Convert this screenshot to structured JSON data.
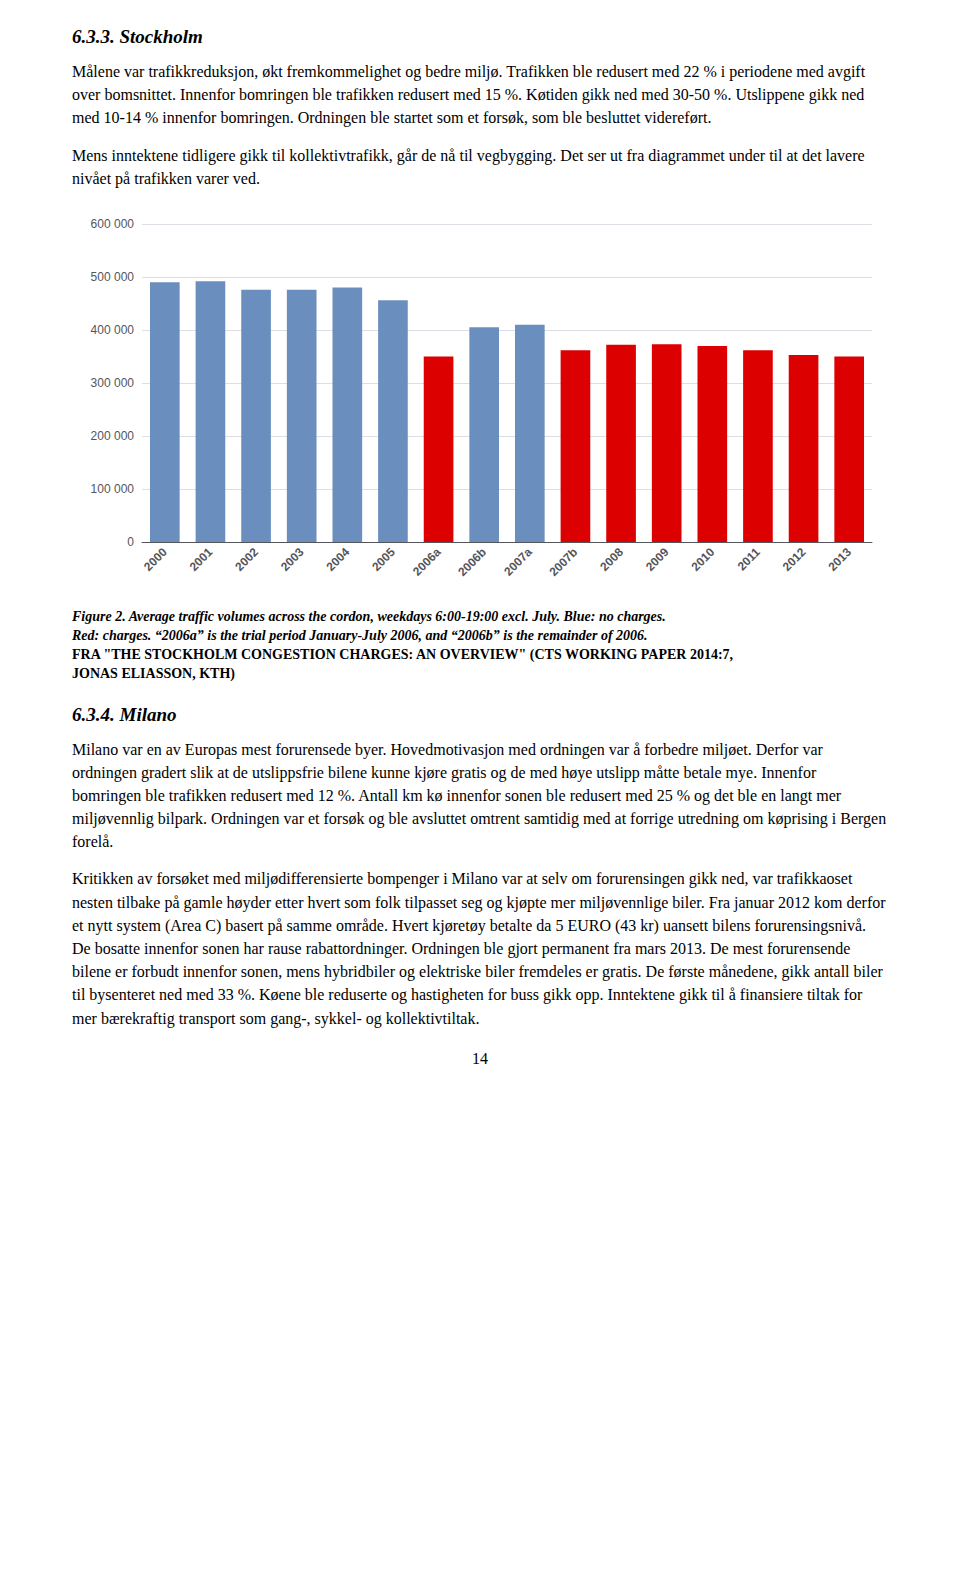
{
  "chart_data": {
    "type": "bar",
    "categories": [
      "2000",
      "2001",
      "2002",
      "2003",
      "2004",
      "2005",
      "2006a",
      "2006b",
      "2007a",
      "2007b",
      "2008",
      "2009",
      "2010",
      "2011",
      "2012",
      "2013"
    ],
    "values": [
      490000,
      492000,
      476000,
      476000,
      480000,
      456000,
      350000,
      405000,
      410000,
      362000,
      372000,
      373000,
      370000,
      362000,
      353000,
      350000
    ],
    "colors": [
      "#6a8fbe",
      "#6a8fbe",
      "#6a8fbe",
      "#6a8fbe",
      "#6a8fbe",
      "#6a8fbe",
      "#dd0000",
      "#6a8fbe",
      "#6a8fbe",
      "#dd0000",
      "#dd0000",
      "#dd0000",
      "#dd0000",
      "#dd0000",
      "#dd0000",
      "#dd0000"
    ],
    "ylim": [
      0,
      600000
    ],
    "yticks": [
      0,
      {
        "value": 100000,
        "label": "100 000"
      },
      {
        "value": 200000,
        "label": "200 000"
      },
      {
        "value": 300000,
        "label": "300 000"
      },
      {
        "value": 400000,
        "label": "400 000"
      },
      {
        "value": 500000,
        "label": "500 000"
      },
      {
        "value": 600000,
        "label": "600 000"
      }
    ],
    "grid": true,
    "annotations": [
      "6.3.3. Stockholm",
      "Målene var trafikkreduksjon, økt fremkommelighet og bedre miljø.   Trafikken ble redusert med 22 % i periodene med avgift over bomsnittet.  Innenfor bomringen ble trafikken redusert med 15 %.  Køtiden gikk ned med 30-50 %.  Utslippene gikk ned med 10-14 % innenfor bomringen.  Ordningen ble startet som et forsøk, som ble besluttet videreført.",
      "Mens inntektene tidligere gikk til kollektivtrafikk, går de nå til vegbygging.  Det ser ut fra diagrammet under til at det lavere nivået på trafikken varer ved.",
      "Figure 2. Average traffic volumes across the cordon, weekdays 6:00-19:00 excl. July. Blue: no charges.",
      "Red: charges. “2006a” is the trial period January-July 2006, and “2006b” is the remainder of 2006.",
      "FRA \"THE STOCKHOLM CONGESTION CHARGES: AN OVERVIEW\" (CTS WORKING PAPER 2014:7,",
      "JONAS ELIASSON, KTH)",
      "6.3.4. Milano",
      "Milano var en av Europas mest forurensede byer.  Hovedmotivasjon med ordningen var å forbedre miljøet.  Derfor var ordningen gradert slik at de utslippsfrie bilene kunne kjøre gratis og de med høye utslipp måtte betale mye.  Innenfor bomringen ble trafikken redusert med 12 %.  Antall km kø innenfor sonen ble redusert med 25 % og det ble en langt mer miljøvennlig bilpark.  Ordningen var et forsøk og ble avsluttet omtrent samtidig med at forrige utredning om køprising i Bergen forelå.",
      "Kritikken av forsøket med miljødifferensierte bompenger i Milano var at selv om forurensingen gikk ned, var trafikkaoset nesten tilbake på gamle høyder etter hvert som folk tilpasset seg og kjøpte mer miljøvennlige biler.  Fra januar 2012 kom derfor et nytt system (Area C) basert på samme område.  Hvert kjøretøy betalte da 5 EURO (43 kr) uansett bilens forurensingsnivå.  De bosatte innenfor sonen har rause rabattordninger.  Ordningen ble gjort permanent fra mars 2013.  De mest forurensende bilene er forbudt innenfor sonen, mens hybridbiler og elektriske biler fremdeles er gratis.  De første månedene, gikk antall biler til bysenteret ned med 33 %.  Køene ble reduserte og hastigheten for buss gikk opp.  Inntektene gikk til å finansiere tiltak for mer bærekraftig transport som gang-, sykkel- og kollektivtiltak.",
      "14"
    ]
  }
}
